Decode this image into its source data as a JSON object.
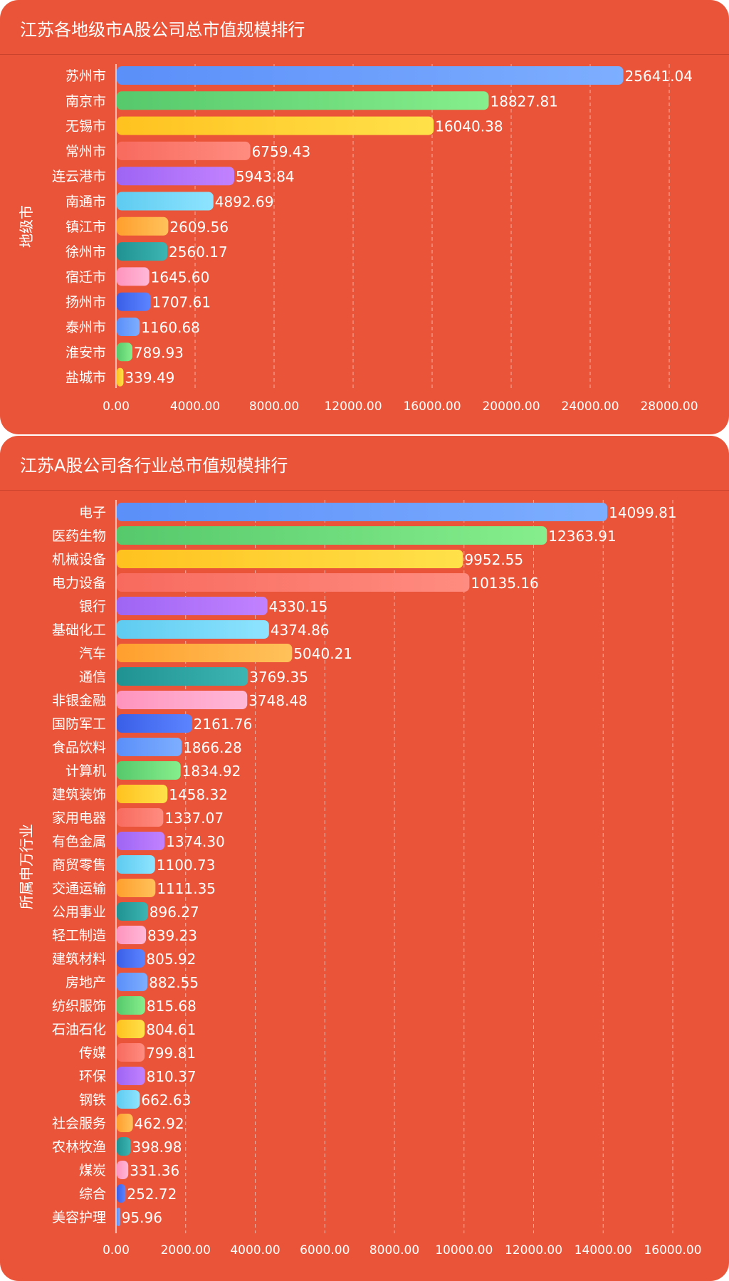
{
  "colors": {
    "background": "#ea5539",
    "palette": [
      [
        "#5b8ff9",
        "#7daeff"
      ],
      [
        "#56c96c",
        "#86ee8c"
      ],
      [
        "#ffc21f",
        "#ffe14a"
      ],
      [
        "#f86a5e",
        "#ff8c80"
      ],
      [
        "#9e65f4",
        "#c282ff"
      ],
      [
        "#5ecbf0",
        "#8ee4ff"
      ],
      [
        "#ff9f2e",
        "#ffc25a"
      ],
      [
        "#1f9291",
        "#3db5b2"
      ],
      [
        "#ff94be",
        "#ffb8d8"
      ],
      [
        "#3a5fe8",
        "#5c84ff"
      ]
    ]
  },
  "chart_data": [
    {
      "type": "bar",
      "orientation": "horizontal",
      "title": "江苏各地级市A股公司总市值规模排行",
      "ylabel": "地级市",
      "xlim": [
        0,
        28000
      ],
      "xticks": [
        "0.00",
        "4000.00",
        "8000.00",
        "12000.00",
        "16000.00",
        "20000.00",
        "24000.00",
        "28000.00"
      ],
      "grid": "vertical dashed",
      "categories": [
        "苏州市",
        "南京市",
        "无锡市",
        "常州市",
        "连云港市",
        "南通市",
        "镇江市",
        "徐州市",
        "宿迁市",
        "扬州市",
        "泰州市",
        "淮安市",
        "盐城市"
      ],
      "values": [
        25641.04,
        18827.81,
        16040.38,
        6759.43,
        5943.84,
        4892.69,
        2609.56,
        2560.17,
        1645.6,
        1707.61,
        1160.68,
        789.93,
        339.49
      ],
      "value_labels": [
        "25641.04",
        "18827.81",
        "16040.38",
        "6759.43",
        "5943.84",
        "4892.69",
        "2609.56",
        "2560.17",
        "1645.60",
        "1707.61",
        "1160.68",
        "789.93",
        "339.49"
      ]
    },
    {
      "type": "bar",
      "orientation": "horizontal",
      "title": "江苏A股公司各行业总市值规模排行",
      "ylabel": "所属申万行业",
      "xlim": [
        0,
        16000
      ],
      "xticks": [
        "0.00",
        "2000.00",
        "4000.00",
        "6000.00",
        "8000.00",
        "10000.00",
        "12000.00",
        "14000.00",
        "16000.00"
      ],
      "grid": "vertical dashed",
      "categories": [
        "电子",
        "医药生物",
        "机械设备",
        "电力设备",
        "银行",
        "基础化工",
        "汽车",
        "通信",
        "非银金融",
        "国防军工",
        "食品饮料",
        "计算机",
        "建筑装饰",
        "家用电器",
        "有色金属",
        "商贸零售",
        "交通运输",
        "公用事业",
        "轻工制造",
        "建筑材料",
        "房地产",
        "纺织服饰",
        "石油石化",
        "传媒",
        "环保",
        "钢铁",
        "社会服务",
        "农林牧渔",
        "煤炭",
        "综合",
        "美容护理"
      ],
      "values": [
        14099.81,
        12363.91,
        9952.55,
        10135.16,
        4330.15,
        4374.86,
        5040.21,
        3769.35,
        3748.48,
        2161.76,
        1866.28,
        1834.92,
        1458.32,
        1337.07,
        1374.3,
        1100.73,
        1111.35,
        896.27,
        839.23,
        805.92,
        882.55,
        815.68,
        804.61,
        799.81,
        810.37,
        662.63,
        462.92,
        398.98,
        331.36,
        252.72,
        95.96
      ],
      "value_labels": [
        "14099.81",
        "12363.91",
        "9952.55",
        "10135.16",
        "4330.15",
        "4374.86",
        "5040.21",
        "3769.35",
        "3748.48",
        "2161.76",
        "1866.28",
        "1834.92",
        "1458.32",
        "1337.07",
        "1374.30",
        "1100.73",
        "1111.35",
        "896.27",
        "839.23",
        "805.92",
        "882.55",
        "815.68",
        "804.61",
        "799.81",
        "810.37",
        "662.63",
        "462.92",
        "398.98",
        "331.36",
        "252.72",
        "95.96"
      ]
    }
  ]
}
